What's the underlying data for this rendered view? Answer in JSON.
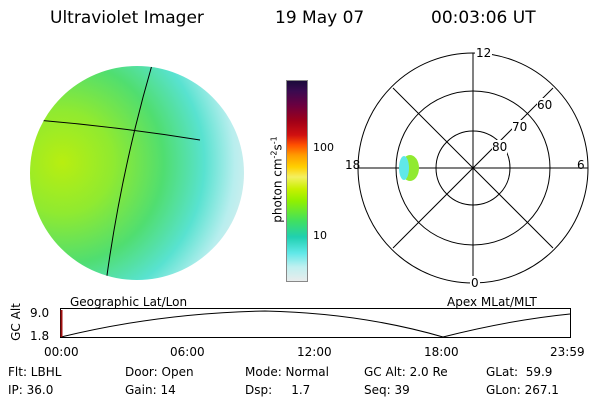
{
  "header": {
    "instrument": "Ultraviolet Imager",
    "date": "19 May 07",
    "time": "00:03:06 UT"
  },
  "colorbar": {
    "label": "photon cm",
    "label_sup1": "-2",
    "label_mid": "s",
    "label_sup2": "-1",
    "tick_labels": [
      "100",
      "10"
    ],
    "colors_top_to_bottom": [
      "#1a0a3a",
      "#3a0a50",
      "#6a0040",
      "#a00018",
      "#d01010",
      "#ff5000",
      "#ff9a00",
      "#ffd000",
      "#f4f060",
      "#c8f000",
      "#90f000",
      "#40e060",
      "#20d0b0",
      "#60e8e8",
      "#c0f0f0",
      "#e8ecec"
    ]
  },
  "geographic_panel": {
    "label": "Geographic Lat/Lon"
  },
  "polar_panel": {
    "label": "Apex MLat/MLT",
    "mlt_labels": {
      "top": "12",
      "left": "18",
      "right": "6",
      "bottom": "0"
    },
    "lat_labels": [
      "60",
      "70",
      "80"
    ]
  },
  "timeline": {
    "ylabel": "GC Alt",
    "y_ticks": [
      "9.0",
      "1.8"
    ],
    "x_ticks": [
      "00:00",
      "06:00",
      "12:00",
      "18:00",
      "23:59"
    ]
  },
  "footer": {
    "row1": {
      "flt": "Flt: LBHL",
      "door": "Door: Open",
      "mode": "Mode: Normal",
      "gcalt": "GC Alt: 2.0 Re",
      "glat": "GLat:  59.9"
    },
    "row2": {
      "ip": "IP: 36.0",
      "gain": "Gain: 14",
      "dsp": "Dsp:     1.7",
      "seq": "Seq: 39",
      "glon": "GLon: 267.1"
    }
  }
}
